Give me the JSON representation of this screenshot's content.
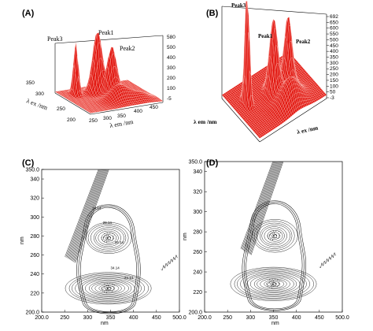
{
  "colors": {
    "surface": "#e21b14",
    "mesh": "#ffd2cc",
    "contour": "#111111",
    "axis": "#000000"
  },
  "panels": {
    "A": {
      "label": "(A)",
      "peaks": [
        "Peak3",
        "Peak1",
        "Peak2"
      ],
      "z_ticks": [
        "580",
        "500",
        "400",
        "300",
        "200",
        "100",
        "-5"
      ],
      "ex_ticks": [
        "200",
        "250",
        "300",
        "350"
      ],
      "em_ticks": [
        "250",
        "300",
        "350",
        "400",
        "450"
      ],
      "ex_label": "λ ex /nm",
      "em_label": "λ em /nm"
    },
    "B": {
      "label": "(B)",
      "peaks": [
        "Peak3",
        "Peak1",
        "Peak2"
      ],
      "z_ticks": [
        "692",
        "650",
        "600",
        "550",
        "500",
        "450",
        "400",
        "350",
        "300",
        "250",
        "200",
        "150",
        "100",
        "50",
        "-3"
      ],
      "ex_label": "λ em /nm",
      "em_label": "λ ex /nm"
    },
    "C": {
      "label": "(C)",
      "y_ticks": [
        "350.0",
        "340",
        "320",
        "300",
        "280",
        "260",
        "240",
        "220",
        "200.0"
      ],
      "x_ticks": [
        "200.0",
        "250",
        "300",
        "350",
        "400",
        "450",
        "500.0"
      ],
      "x_label": "nm",
      "y_label": "nm",
      "contour_labels": [
        "24.14",
        "28.14",
        "34.14",
        "34.14",
        "24.14"
      ]
    },
    "D": {
      "label": "(D)",
      "y_ticks": [
        "350.0",
        "340",
        "320",
        "300",
        "280",
        "260",
        "240",
        "220",
        "200.0"
      ],
      "x_ticks": [
        "200.0",
        "250",
        "300",
        "350",
        "400",
        "450",
        "500.0"
      ],
      "x_label": "nm",
      "y_label": "nm"
    }
  },
  "chart_data": [
    {
      "type": "surface",
      "panel": "A",
      "xlabel": "λ em /nm",
      "ylabel": "λ ex /nm",
      "zlim": [
        -5,
        580
      ],
      "peaks": [
        {
          "name": "Peak1",
          "em": 340,
          "ex": 280,
          "intensity": 520
        },
        {
          "name": "Peak2",
          "em": 340,
          "ex": 230,
          "intensity": 380
        },
        {
          "name": "Peak3",
          "em": 300,
          "ex": 300,
          "intensity": 430
        }
      ]
    },
    {
      "type": "surface",
      "panel": "B",
      "xlabel": "λ em /nm",
      "ylabel": "λ ex /nm",
      "zlim": [
        -3,
        692
      ],
      "peaks": [
        {
          "name": "Peak1",
          "em": 340,
          "ex": 280,
          "intensity": 450
        },
        {
          "name": "Peak2",
          "em": 340,
          "ex": 230,
          "intensity": 420
        },
        {
          "name": "Peak3",
          "em": 300,
          "ex": 300,
          "intensity": 692
        }
      ]
    },
    {
      "type": "contour",
      "panel": "C",
      "xlim": [
        200,
        500
      ],
      "ylim": [
        200,
        350
      ],
      "centers": [
        {
          "x": 345,
          "y": 278,
          "rings": 9
        },
        {
          "x": 345,
          "y": 225,
          "rings": 13
        }
      ],
      "ridge": {
        "from": [
          262,
          255
        ],
        "to": [
          335,
          350
        ]
      }
    },
    {
      "type": "contour",
      "panel": "D",
      "xlim": [
        200,
        500
      ],
      "ylim": [
        200,
        350
      ],
      "centers": [
        {
          "x": 352,
          "y": 276,
          "rings": 9
        },
        {
          "x": 350,
          "y": 228,
          "rings": 13
        }
      ],
      "ridge": {
        "from": [
          290,
          260
        ],
        "to": [
          360,
          350
        ]
      }
    }
  ]
}
